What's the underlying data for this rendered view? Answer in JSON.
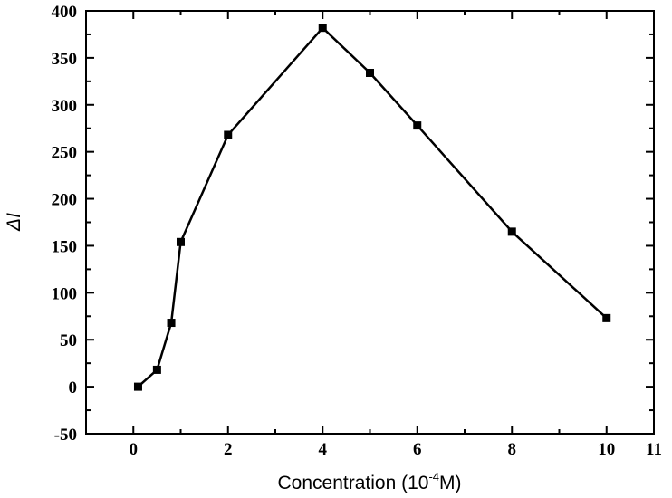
{
  "chart_data": {
    "type": "line",
    "title": "",
    "xlabel": "Concentration (10",
    "xlabel_sup": "-4",
    "xlabel_suffix": "M)",
    "ylabel": "ΔI",
    "xlim": [
      -1,
      11
    ],
    "ylim": [
      -50,
      400
    ],
    "x_ticks": [
      0,
      2,
      4,
      6,
      8,
      10,
      11
    ],
    "x_minor_ticks": [
      -1,
      1,
      3,
      5,
      7,
      9
    ],
    "y_ticks": [
      -50,
      0,
      50,
      100,
      150,
      200,
      250,
      300,
      350,
      400
    ],
    "y_minor_ticks": [
      -25,
      25,
      75,
      125,
      175,
      225,
      275,
      325,
      375
    ],
    "grid": false,
    "legend": "none",
    "series": [
      {
        "color": "#000000",
        "marker": "square",
        "x": [
          0.1,
          0.5,
          0.8,
          1,
          2,
          4,
          5,
          6,
          8,
          10
        ],
        "y": [
          0,
          18,
          68,
          154,
          268,
          382,
          334,
          278,
          165,
          73
        ]
      }
    ]
  }
}
